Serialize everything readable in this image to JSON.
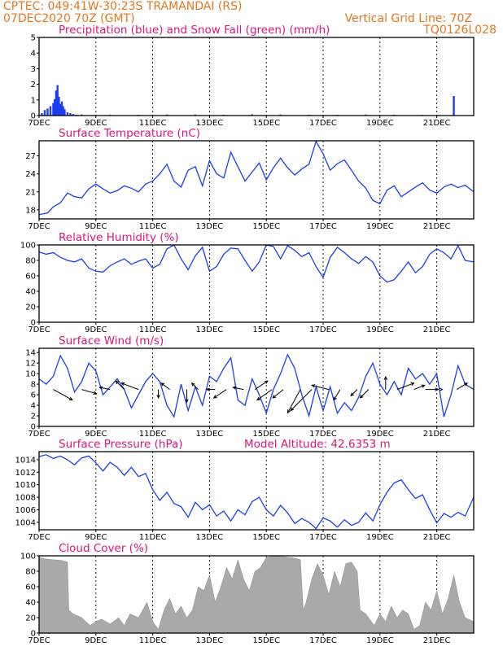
{
  "header": {
    "line1": "CPTEC:   049:41W-30:23S   TRAMANDAI (RS)",
    "line2": "07DEC2020 70Z (GMT)",
    "grid_note": "Vertical Grid Line: 70Z",
    "model": "TQ0126L028"
  },
  "x_axis": {
    "labels": [
      "7DEC",
      "9DEC",
      "11DEC",
      "13DEC",
      "15DEC",
      "17DEC",
      "19DEC",
      "21DEC"
    ],
    "label_days": [
      0,
      2,
      4,
      6,
      8,
      10,
      12,
      14
    ],
    "range_days": [
      0,
      15.3
    ]
  },
  "colors": {
    "line": "#1a3ef0",
    "precip": "#1a3ef0",
    "snow": "#22aa22",
    "cloud": "#a9a9a9",
    "header": "#e8761e",
    "title": "#e0147a"
  },
  "chart_data": [
    {
      "id": "precip",
      "type": "bar",
      "title": "Precipitation (blue) and Snow Fall (green) (mm/h)",
      "ylim": [
        0,
        5
      ],
      "yticks": [
        0,
        1,
        2,
        3,
        4,
        5
      ],
      "series": [
        {
          "x": [
            0.1,
            0.2,
            0.3,
            0.4,
            0.5,
            0.55,
            0.6,
            0.65,
            0.7,
            0.75,
            0.8,
            0.85,
            0.9,
            1.0,
            1.1,
            1.2,
            1.3,
            14.6
          ],
          "values": [
            0.15,
            0.35,
            0.45,
            0.6,
            0.8,
            1.05,
            1.6,
            1.95,
            1.2,
            0.75,
            0.9,
            0.6,
            0.4,
            0.2,
            0.15,
            0.1,
            0.05,
            1.25
          ]
        },
        {
          "x": [
            1.5,
            2.5,
            3.5,
            4.5,
            5.5,
            6.5,
            7.5,
            8.5,
            9.5,
            10.5,
            11.5,
            12.5,
            13.5
          ],
          "values": [
            0.08,
            0.06,
            0.05,
            0.07,
            0.08,
            0.06,
            0.09,
            0.07,
            0.06,
            0.05,
            0.07,
            0.06,
            0.05
          ]
        }
      ]
    },
    {
      "id": "temp",
      "type": "line",
      "title": "Surface Temperature (nC)",
      "ylim": [
        16.5,
        29.5
      ],
      "yticks": [
        18,
        21,
        24,
        27
      ],
      "series": [
        {
          "x": [
            0,
            0.3,
            0.5,
            0.75,
            1.0,
            1.25,
            1.5,
            1.75,
            2.0,
            2.25,
            2.5,
            2.75,
            3.0,
            3.25,
            3.5,
            3.75,
            4.0,
            4.25,
            4.5,
            4.75,
            5.0,
            5.25,
            5.5,
            5.75,
            6.0,
            6.25,
            6.5,
            6.75,
            7.0,
            7.25,
            7.5,
            7.75,
            8.0,
            8.25,
            8.5,
            8.75,
            9.0,
            9.25,
            9.5,
            9.75,
            10.0,
            10.25,
            10.5,
            10.75,
            11.0,
            11.25,
            11.5,
            11.75,
            12.0,
            12.25,
            12.5,
            12.75,
            13.0,
            13.25,
            13.5,
            13.75,
            14.0,
            14.25,
            14.5,
            14.75,
            15.0,
            15.3
          ],
          "values": [
            17.2,
            17.5,
            18.5,
            19.2,
            20.8,
            20.2,
            20.0,
            21.5,
            22.3,
            21.5,
            20.8,
            21.2,
            22.0,
            21.6,
            21.0,
            22.3,
            22.8,
            24.0,
            25.6,
            22.8,
            21.8,
            24.6,
            25.2,
            22.0,
            26.2,
            24.0,
            23.3,
            27.6,
            25.2,
            22.8,
            24.3,
            25.8,
            23.0,
            25.0,
            26.6,
            25.0,
            23.8,
            24.8,
            25.6,
            29.4,
            27.3,
            24.6,
            25.7,
            26.3,
            24.6,
            22.8,
            21.6,
            19.6,
            19.0,
            21.3,
            22.0,
            20.2,
            21.0,
            21.8,
            22.5,
            21.3,
            20.8,
            21.8,
            22.3,
            21.7,
            22.1,
            21.0
          ]
        }
      ]
    },
    {
      "id": "rh",
      "type": "line",
      "title": "Relative Humidity (%)",
      "ylim": [
        0,
        100
      ],
      "yticks": [
        0,
        20,
        40,
        60,
        80,
        100
      ],
      "series": [
        {
          "x": [
            0,
            0.25,
            0.5,
            0.75,
            1.0,
            1.25,
            1.5,
            1.75,
            2.0,
            2.25,
            2.5,
            2.75,
            3.0,
            3.25,
            3.5,
            3.75,
            4.0,
            4.25,
            4.5,
            4.75,
            5.0,
            5.25,
            5.5,
            5.75,
            6.0,
            6.25,
            6.5,
            6.75,
            7.0,
            7.25,
            7.5,
            7.75,
            8.0,
            8.25,
            8.5,
            8.75,
            9.0,
            9.25,
            9.5,
            9.75,
            10.0,
            10.25,
            10.5,
            10.75,
            11.0,
            11.25,
            11.5,
            11.75,
            12.0,
            12.25,
            12.5,
            12.75,
            13.0,
            13.25,
            13.5,
            13.75,
            14.0,
            14.25,
            14.5,
            14.75,
            15.0,
            15.3
          ],
          "values": [
            91,
            88,
            90,
            84,
            80,
            78,
            82,
            70,
            66,
            65,
            73,
            78,
            82,
            75,
            79,
            82,
            70,
            75,
            95,
            100,
            82,
            68,
            86,
            97,
            66,
            72,
            88,
            96,
            95,
            80,
            66,
            78,
            100,
            98,
            82,
            99,
            93,
            85,
            90,
            72,
            58,
            84,
            97,
            90,
            82,
            76,
            85,
            78,
            60,
            52,
            55,
            66,
            78,
            64,
            72,
            88,
            95,
            90,
            82,
            99,
            80,
            78
          ]
        }
      ]
    },
    {
      "id": "wind",
      "type": "line",
      "title": "Surface Wind (m/s)",
      "ylim": [
        0,
        14.8
      ],
      "yticks": [
        0,
        2,
        4,
        6,
        8,
        10,
        12,
        14
      ],
      "series": [
        {
          "x": [
            0,
            0.25,
            0.5,
            0.75,
            1.0,
            1.25,
            1.5,
            1.75,
            2.0,
            2.25,
            2.5,
            2.75,
            3.0,
            3.25,
            3.5,
            3.75,
            4.0,
            4.25,
            4.5,
            4.75,
            5.0,
            5.25,
            5.5,
            5.75,
            6.0,
            6.25,
            6.5,
            6.75,
            7.0,
            7.25,
            7.5,
            7.75,
            8.0,
            8.25,
            8.5,
            8.75,
            9.0,
            9.25,
            9.5,
            9.75,
            10.0,
            10.25,
            10.5,
            10.75,
            11.0,
            11.25,
            11.5,
            11.75,
            12.0,
            12.25,
            12.5,
            12.75,
            13.0,
            13.25,
            13.5,
            13.75,
            14.0,
            14.25,
            14.5,
            14.75,
            15.0,
            15.3
          ],
          "values": [
            9.0,
            8.0,
            9.5,
            13.4,
            11.0,
            6.5,
            8.5,
            12.0,
            10.5,
            6.0,
            7.5,
            9.0,
            7.0,
            3.5,
            6.0,
            8.5,
            10.0,
            8.5,
            4.0,
            1.8,
            8.0,
            3.0,
            7.5,
            4.0,
            9.5,
            8.5,
            11.0,
            13.0,
            5.0,
            4.0,
            9.0,
            6.0,
            2.5,
            7.0,
            10.0,
            13.6,
            11.0,
            6.0,
            2.0,
            7.5,
            3.0,
            7.5,
            2.5,
            4.5,
            3.0,
            5.5,
            9.5,
            12.0,
            8.0,
            6.0,
            8.5,
            6.0,
            11.0,
            9.0,
            10.0,
            8.0,
            10.0,
            1.8,
            6.0,
            11.5,
            8.0,
            7.0
          ]
        }
      ],
      "vectors": {
        "x": [
          0.5,
          1.5,
          2.5,
          3.0,
          3.5,
          4.2,
          4.6,
          5.2,
          5.6,
          6.2,
          6.6,
          7.2,
          7.6,
          8.2,
          8.6,
          9.2,
          9.6,
          10.2,
          10.6,
          11.2,
          11.6,
          12.2,
          12.6,
          13.2,
          13.6,
          14.2,
          14.7
        ],
        "u": [
          9,
          7,
          -5,
          -4,
          -8,
          0,
          -4,
          0,
          -3,
          -4,
          -6,
          -5,
          6,
          -7,
          -5,
          -6,
          -10,
          -8,
          -3,
          -3,
          -4,
          0,
          8,
          5,
          6,
          0,
          5
        ],
        "v": [
          -5,
          -2,
          1,
          4,
          3,
          -4,
          3,
          -6,
          3,
          0,
          -4,
          1,
          4,
          -5,
          -4,
          -11,
          -10,
          2,
          -5,
          -3,
          -4,
          6,
          3,
          2,
          0,
          0,
          3
        ]
      }
    },
    {
      "id": "pressure",
      "type": "line",
      "title": "Surface Pressure (hPa)",
      "annotation": "Model Altitude: 42.6353 m",
      "ylim": [
        1002.8,
        1015.3
      ],
      "yticks": [
        1004,
        1006,
        1008,
        1010,
        1012,
        1014
      ],
      "series": [
        {
          "x": [
            0,
            0.25,
            0.5,
            0.75,
            1.0,
            1.25,
            1.5,
            1.75,
            2.0,
            2.25,
            2.5,
            2.75,
            3.0,
            3.25,
            3.5,
            3.75,
            4.0,
            4.25,
            4.5,
            4.75,
            5.0,
            5.25,
            5.5,
            5.75,
            6.0,
            6.25,
            6.5,
            6.75,
            7.0,
            7.25,
            7.5,
            7.75,
            8.0,
            8.25,
            8.5,
            8.75,
            9.0,
            9.25,
            9.5,
            9.75,
            10.0,
            10.25,
            10.5,
            10.75,
            11.0,
            11.25,
            11.5,
            11.75,
            12.0,
            12.25,
            12.5,
            12.75,
            13.0,
            13.25,
            13.5,
            13.75,
            14.0,
            14.25,
            14.5,
            14.75,
            15.0,
            15.3
          ],
          "values": [
            1014.5,
            1014.8,
            1014.2,
            1014.6,
            1014.0,
            1013.2,
            1014.3,
            1014.6,
            1013.5,
            1012.2,
            1013.6,
            1012.8,
            1011.5,
            1012.8,
            1011.3,
            1011.8,
            1009.2,
            1007.5,
            1008.8,
            1007.0,
            1006.5,
            1004.8,
            1007.2,
            1006.0,
            1006.8,
            1005.0,
            1005.8,
            1004.2,
            1006.0,
            1005.2,
            1007.3,
            1008.0,
            1006.0,
            1005.0,
            1006.7,
            1005.5,
            1003.8,
            1004.6,
            1004.0,
            1003.0,
            1004.7,
            1004.2,
            1003.2,
            1004.4,
            1003.5,
            1004.0,
            1005.5,
            1004.2,
            1006.8,
            1008.8,
            1010.3,
            1010.8,
            1009.2,
            1007.8,
            1008.4,
            1006.0,
            1003.9,
            1005.4,
            1004.8,
            1005.6,
            1005.0,
            1008.0
          ]
        }
      ]
    },
    {
      "id": "cloud",
      "type": "area",
      "title": "Cloud Cover (%)",
      "ylim": [
        0,
        100
      ],
      "yticks": [
        0,
        20,
        40,
        60,
        80,
        100
      ],
      "series": [
        {
          "x": [
            0,
            0.2,
            0.5,
            0.8,
            1.0,
            1.05,
            1.2,
            1.5,
            1.8,
            2.0,
            2.2,
            2.5,
            2.8,
            3.0,
            3.2,
            3.5,
            3.8,
            4.0,
            4.2,
            4.4,
            4.6,
            4.8,
            5.0,
            5.2,
            5.4,
            5.6,
            5.8,
            6.0,
            6.2,
            6.4,
            6.6,
            6.8,
            7.0,
            7.2,
            7.4,
            7.6,
            7.8,
            8.0,
            8.3,
            8.6,
            9.0,
            9.2,
            9.3,
            9.4,
            9.6,
            9.8,
            10.0,
            10.2,
            10.4,
            10.6,
            10.8,
            11.0,
            11.2,
            11.3,
            11.5,
            11.8,
            12.0,
            12.2,
            12.4,
            12.6,
            12.8,
            13.0,
            13.2,
            13.4,
            13.6,
            13.8,
            14.0,
            14.2,
            14.4,
            14.6,
            14.8,
            15.0,
            15.3
          ],
          "values": [
            98,
            96,
            95,
            94,
            92,
            30,
            25,
            20,
            10,
            15,
            18,
            12,
            20,
            10,
            25,
            20,
            40,
            15,
            5,
            30,
            45,
            25,
            35,
            20,
            30,
            60,
            55,
            75,
            40,
            60,
            85,
            70,
            95,
            70,
            55,
            80,
            85,
            98,
            100,
            99,
            97,
            95,
            30,
            40,
            70,
            90,
            75,
            50,
            80,
            60,
            90,
            92,
            80,
            30,
            25,
            10,
            25,
            15,
            35,
            20,
            30,
            25,
            5,
            10,
            40,
            30,
            55,
            25,
            45,
            75,
            40,
            20,
            15
          ]
        }
      ]
    }
  ]
}
